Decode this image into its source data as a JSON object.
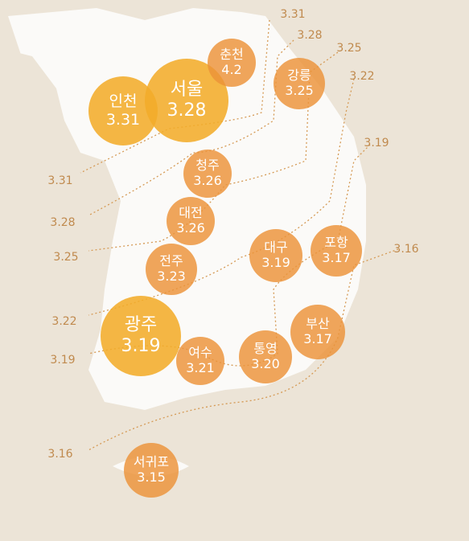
{
  "cities": [
    {
      "name": "서울",
      "value": "3.28"
    },
    {
      "name": "인천",
      "value": "3.31"
    },
    {
      "name": "춘천",
      "value": "4.2"
    },
    {
      "name": "강릉",
      "value": "3.25"
    },
    {
      "name": "청주",
      "value": "3.26"
    },
    {
      "name": "대전",
      "value": "3.26"
    },
    {
      "name": "전주",
      "value": "3.23"
    },
    {
      "name": "대구",
      "value": "3.19"
    },
    {
      "name": "포항",
      "value": "3.17"
    },
    {
      "name": "광주",
      "value": "3.19"
    },
    {
      "name": "여수",
      "value": "3.21"
    },
    {
      "name": "통영",
      "value": "3.20"
    },
    {
      "name": "부산",
      "value": "3.17"
    },
    {
      "name": "서귀포",
      "value": "3.15"
    }
  ],
  "contours": {
    "right": [
      "3.31",
      "3.28",
      "3.25",
      "3.22",
      "3.19",
      "3.16"
    ],
    "left": [
      "3.31",
      "3.28",
      "3.25",
      "3.22",
      "3.19",
      "3.16"
    ]
  }
}
